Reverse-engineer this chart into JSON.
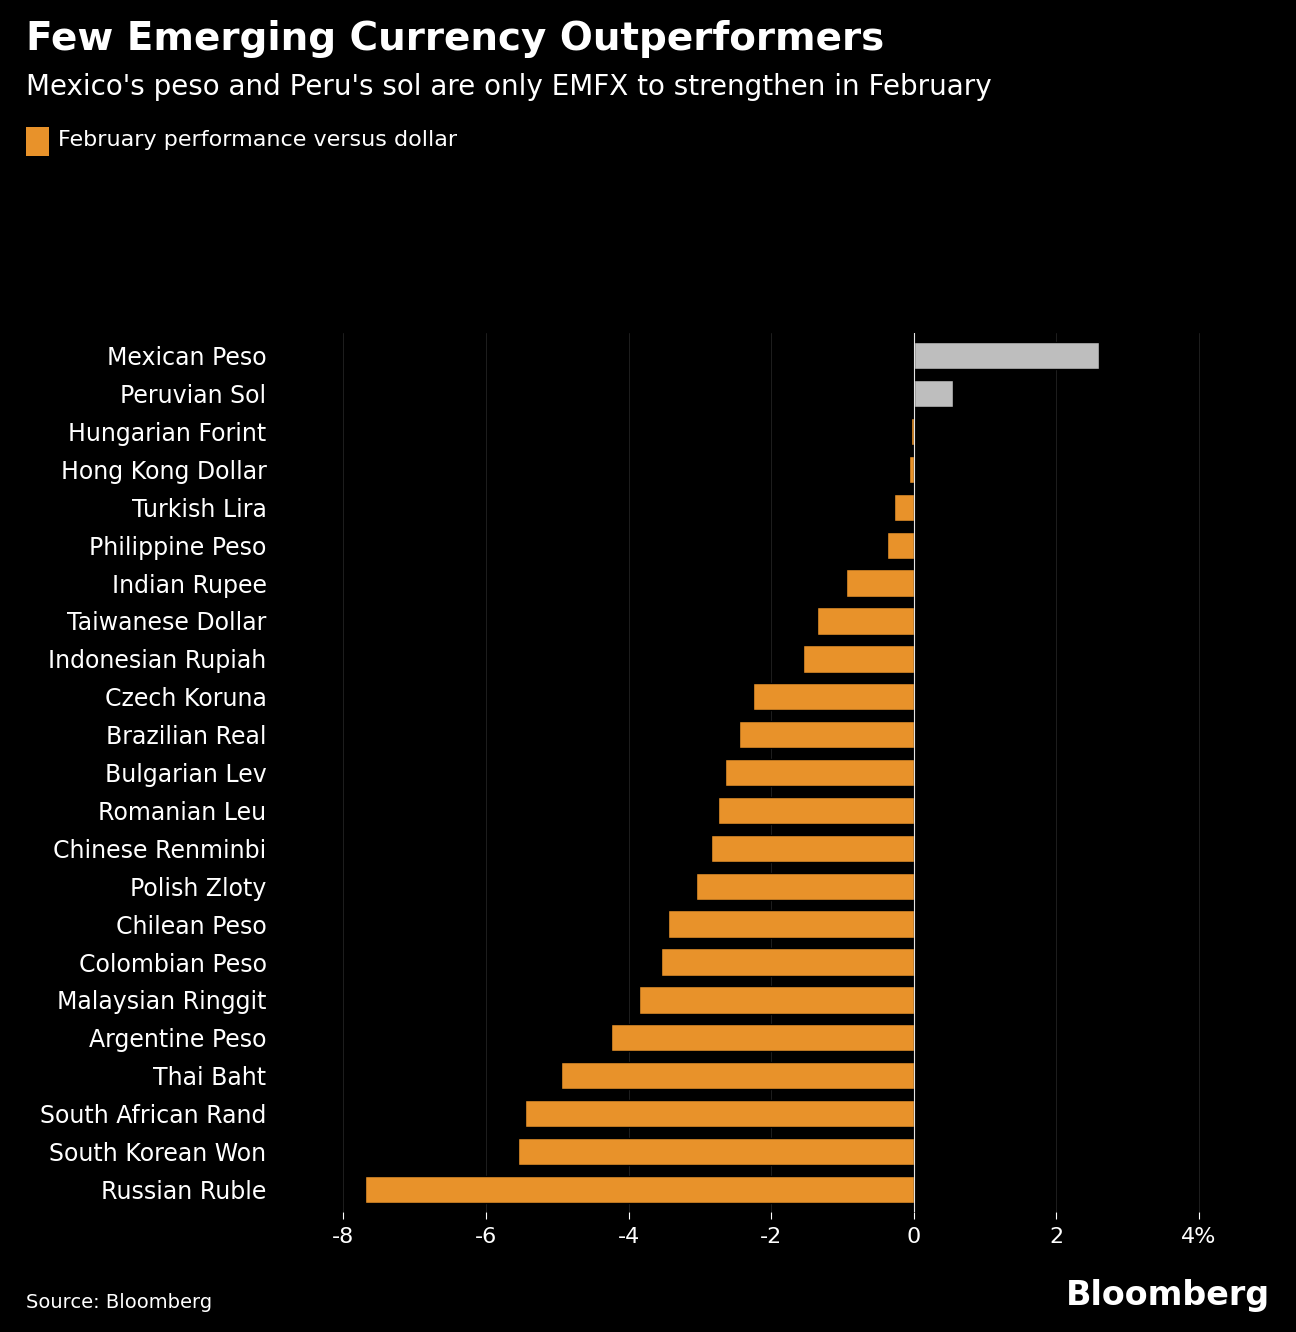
{
  "title": "Few Emerging Currency Outperformers",
  "subtitle": "Mexico's peso and Peru's sol are only EMFX to strengthen in February",
  "legend_label": "February performance versus dollar",
  "source": "Source: Bloomberg",
  "watermark": "Bloomberg",
  "background_color": "#000000",
  "text_color": "#ffffff",
  "orange_color": "#E8922A",
  "gray_color": "#BEBEBE",
  "categories": [
    "Mexican Peso",
    "Peruvian Sol",
    "Hungarian Forint",
    "Hong Kong Dollar",
    "Turkish Lira",
    "Philippine Peso",
    "Indian Rupee",
    "Taiwanese Dollar",
    "Indonesian Rupiah",
    "Czech Koruna",
    "Brazilian Real",
    "Bulgarian Lev",
    "Romanian Leu",
    "Chinese Renminbi",
    "Polish Zloty",
    "Chilean Peso",
    "Colombian Peso",
    "Malaysian Ringgit",
    "Argentine Peso",
    "Thai Baht",
    "South African Rand",
    "South Korean Won",
    "Russian Ruble"
  ],
  "values": [
    2.6,
    0.55,
    -0.04,
    -0.06,
    -0.28,
    -0.38,
    -0.95,
    -1.35,
    -1.55,
    -2.25,
    -2.45,
    -2.65,
    -2.75,
    -2.85,
    -3.05,
    -3.45,
    -3.55,
    -3.85,
    -4.25,
    -4.95,
    -5.45,
    -5.55,
    -7.7
  ],
  "xlim": [
    -9,
    5
  ],
  "xticks": [
    -8,
    -6,
    -4,
    -2,
    0,
    2,
    4
  ],
  "xtick_labels": [
    "-8",
    "-6",
    "-4",
    "-2",
    "0",
    "2",
    "4%"
  ],
  "title_fontsize": 28,
  "subtitle_fontsize": 20,
  "label_fontsize": 17,
  "tick_fontsize": 16,
  "source_fontsize": 14,
  "watermark_fontsize": 24,
  "legend_fontsize": 16
}
